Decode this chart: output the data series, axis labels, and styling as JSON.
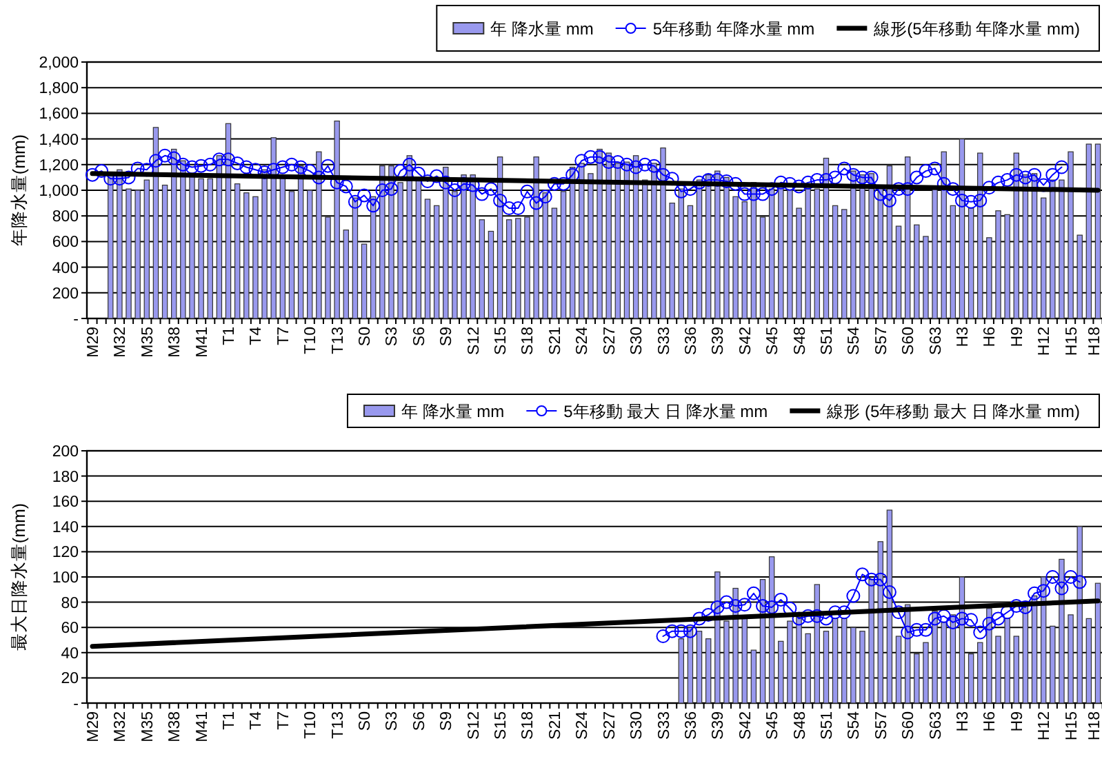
{
  "chart_data": [
    {
      "type": "bar",
      "ylabel": "年降水量(mm)",
      "grid": "y",
      "legend": "top right",
      "categories": [
        "M29",
        null,
        null,
        "M32",
        null,
        null,
        "M35",
        null,
        null,
        "M38",
        null,
        null,
        "M41",
        null,
        null,
        "T1",
        null,
        null,
        "T4",
        null,
        null,
        "T7",
        null,
        null,
        "T10",
        null,
        null,
        "T13",
        null,
        null,
        "S0",
        null,
        null,
        "S3",
        null,
        null,
        "S6",
        null,
        null,
        "S9",
        null,
        null,
        "S12",
        null,
        null,
        "S15",
        null,
        null,
        "S18",
        null,
        null,
        "S21",
        null,
        null,
        "S24",
        null,
        null,
        "S27",
        null,
        null,
        "S30",
        null,
        null,
        "S33",
        null,
        null,
        "S36",
        null,
        null,
        "S39",
        null,
        null,
        "S42",
        null,
        null,
        "S45",
        null,
        null,
        "S48",
        null,
        null,
        "S51",
        null,
        null,
        "S54",
        null,
        null,
        "S57",
        null,
        null,
        "S60",
        null,
        null,
        "S63",
        null,
        null,
        "H3",
        null,
        null,
        "H6",
        null,
        null,
        "H9",
        null,
        null,
        "H12",
        null,
        null,
        "H15",
        null,
        null,
        "H18"
      ],
      "ylim": [
        0,
        2000
      ],
      "yticks": [
        {
          "value": 0,
          "label": "-"
        },
        200,
        400,
        600,
        800,
        {
          "value": 1000,
          "label": "1,000"
        },
        {
          "value": 1200,
          "label": "1,200"
        },
        {
          "value": 1400,
          "label": "1,400"
        },
        {
          "value": 1600,
          "label": "1,600"
        },
        {
          "value": 1800,
          "label": "1,800"
        },
        {
          "value": 2000,
          "label": "2,000"
        }
      ],
      "series": [
        {
          "name": "年 降水量 mm",
          "color": "#9999ee",
          "values": [
            null,
            null,
            1140,
            1160,
            1010,
            1000,
            1080,
            1490,
            1040,
            1320,
            1230,
            1120,
            1090,
            1090,
            1270,
            1520,
            1050,
            980,
            950,
            1160,
            1410,
            1120,
            990,
            1190,
            1000,
            1300,
            790,
            1540,
            690,
            940,
            580,
            950,
            1190,
            1190,
            1060,
            1270,
            1080,
            930,
            880,
            1180,
            990,
            1120,
            1120,
            770,
            680,
            1260,
            770,
            780,
            790,
            1260,
            980,
            860,
            990,
            1180,
            1210,
            1130,
            1320,
            1290,
            1210,
            1220,
            1270,
            1080,
            1210,
            1330,
            900,
            1010,
            880,
            1080,
            1120,
            1150,
            1100,
            950,
            910,
            1060,
            790,
            1010,
            1030,
            1000,
            860,
            1010,
            1010,
            1250,
            880,
            850,
            1150,
            1120,
            1130,
            1030,
            1190,
            720,
            1260,
            730,
            640,
            1010,
            1300,
            880,
            1400,
            860,
            1290,
            630,
            840,
            810,
            1290,
            1120,
            1130,
            940,
            1080,
            1080,
            1300,
            650,
            1360,
            1360
          ]
        },
        {
          "name": "5年移動 年降水量 mm",
          "type": "line",
          "marker": "circle",
          "color": "#0000ff",
          "values": [
            1120,
            1150,
            1090,
            1090,
            1100,
            1170,
            1160,
            1230,
            1270,
            1250,
            1200,
            1180,
            1190,
            1200,
            1240,
            1240,
            1210,
            1180,
            1160,
            1140,
            1160,
            1180,
            1200,
            1180,
            1150,
            1100,
            1190,
            1060,
            1030,
            910,
            960,
            880,
            1000,
            1010,
            1150,
            1200,
            1130,
            1070,
            1110,
            1060,
            1000,
            1050,
            1040,
            970,
            1010,
            920,
            860,
            860,
            990,
            900,
            950,
            1050,
            1050,
            1120,
            1230,
            1260,
            1260,
            1220,
            1220,
            1200,
            1180,
            1200,
            1190,
            1120,
            1090,
            990,
            1010,
            1060,
            1080,
            1080,
            1070,
            1050,
            970,
            970,
            970,
            1010,
            1060,
            1050,
            1030,
            1060,
            1080,
            1080,
            1100,
            1170,
            1120,
            1100,
            1100,
            970,
            920,
            1010,
            1010,
            1100,
            1150,
            1170,
            1050,
            1010,
            920,
            910,
            920,
            1020,
            1060,
            1080,
            1120,
            1100,
            1120,
            1040,
            1120,
            1180,
            null,
            null,
            null,
            null
          ]
        },
        {
          "name": "線形(5年移動 年降水量 mm)",
          "type": "line",
          "color": "#000000",
          "x": [
            "M29",
            "H18"
          ],
          "values": [
            1130,
            1000
          ]
        }
      ]
    },
    {
      "type": "bar",
      "ylabel": "最大日降水量(mm)",
      "grid": "y",
      "legend": "top right",
      "categories": [
        "M29",
        null,
        null,
        "M32",
        null,
        null,
        "M35",
        null,
        null,
        "M38",
        null,
        null,
        "M41",
        null,
        null,
        "T1",
        null,
        null,
        "T4",
        null,
        null,
        "T7",
        null,
        null,
        "T10",
        null,
        null,
        "T13",
        null,
        null,
        "S0",
        null,
        null,
        "S3",
        null,
        null,
        "S6",
        null,
        null,
        "S9",
        null,
        null,
        "S12",
        null,
        null,
        "S15",
        null,
        null,
        "S18",
        null,
        null,
        "S21",
        null,
        null,
        "S24",
        null,
        null,
        "S27",
        null,
        null,
        "S30",
        null,
        null,
        "S33",
        null,
        null,
        "S36",
        null,
        null,
        "S39",
        null,
        null,
        "S42",
        null,
        null,
        "S45",
        null,
        null,
        "S48",
        null,
        null,
        "S51",
        null,
        null,
        "S54",
        null,
        null,
        "S57",
        null,
        null,
        "S60",
        null,
        null,
        "S63",
        null,
        null,
        "H3",
        null,
        null,
        "H6",
        null,
        null,
        "H9",
        null,
        null,
        "H12",
        null,
        null,
        "H15",
        null,
        null,
        "H18"
      ],
      "ylim": [
        0,
        200
      ],
      "yticks": [
        {
          "value": 0,
          "label": "-"
        },
        20,
        40,
        60,
        80,
        100,
        120,
        140,
        160,
        180,
        200
      ],
      "series": [
        {
          "name": "年 降水量 mm",
          "color": "#9999ee",
          "values": [
            null,
            null,
            null,
            null,
            null,
            null,
            null,
            null,
            null,
            null,
            null,
            null,
            null,
            null,
            null,
            null,
            null,
            null,
            null,
            null,
            null,
            null,
            null,
            null,
            null,
            null,
            null,
            null,
            null,
            null,
            null,
            null,
            null,
            null,
            null,
            null,
            null,
            null,
            null,
            null,
            null,
            null,
            null,
            null,
            null,
            null,
            null,
            null,
            null,
            null,
            null,
            null,
            null,
            null,
            null,
            null,
            null,
            null,
            null,
            null,
            null,
            null,
            null,
            null,
            null,
            51,
            60,
            57,
            51,
            104,
            65,
            91,
            68,
            42,
            98,
            116,
            49,
            65,
            68,
            55,
            94,
            57,
            67,
            67,
            60,
            57,
            98,
            128,
            153,
            53,
            78,
            39,
            48,
            73,
            64,
            70,
            100,
            39,
            48,
            75,
            53,
            67,
            53,
            78,
            85,
            100,
            61,
            114,
            70,
            140,
            67,
            95
          ]
        },
        {
          "name": "5年移動 最大 日 降水量 mm",
          "type": "line",
          "marker": "circle",
          "color": "#0000ff",
          "values": [
            null,
            null,
            null,
            null,
            null,
            null,
            null,
            null,
            null,
            null,
            null,
            null,
            null,
            null,
            null,
            null,
            null,
            null,
            null,
            null,
            null,
            null,
            null,
            null,
            null,
            null,
            null,
            null,
            null,
            null,
            null,
            null,
            null,
            null,
            null,
            null,
            null,
            null,
            null,
            null,
            null,
            null,
            null,
            null,
            null,
            null,
            null,
            null,
            null,
            null,
            null,
            null,
            null,
            null,
            null,
            null,
            null,
            null,
            null,
            null,
            null,
            null,
            null,
            53,
            57,
            57,
            57,
            67,
            70,
            76,
            80,
            77,
            78,
            87,
            77,
            76,
            82,
            75,
            67,
            69,
            69,
            67,
            72,
            72,
            85,
            102,
            98,
            98,
            88,
            72,
            56,
            58,
            58,
            67,
            69,
            64,
            67,
            66,
            56,
            63,
            67,
            72,
            77,
            76,
            87,
            89,
            100,
            91,
            100,
            96,
            null,
            null
          ]
        },
        {
          "name": "線形 (5年移動 最大 日 降水量 mm)",
          "type": "line",
          "color": "#000000",
          "x": [
            "M29",
            "H18"
          ],
          "values": [
            45,
            81
          ]
        }
      ]
    }
  ]
}
